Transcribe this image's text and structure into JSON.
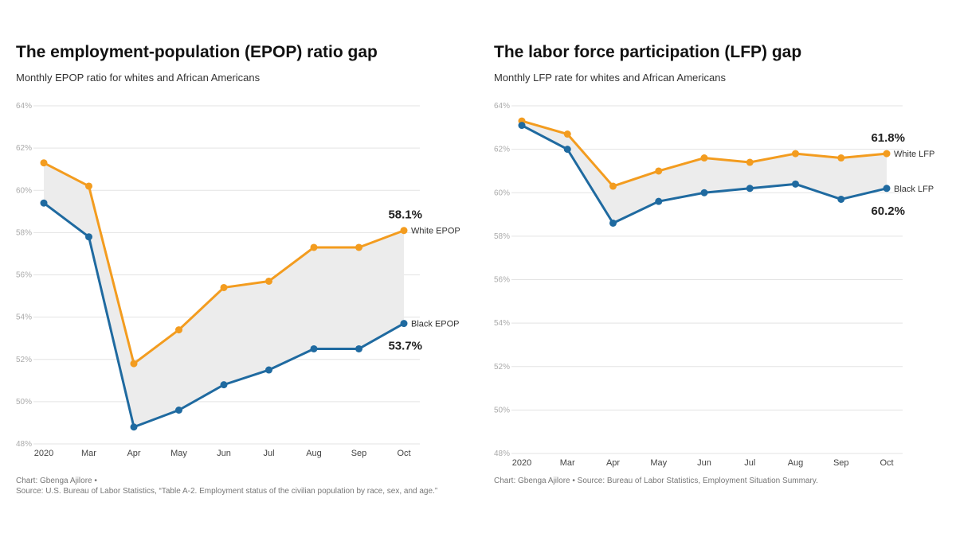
{
  "colors": {
    "white_series": "#f39c1f",
    "black_series": "#1f6aa0",
    "gap_fill": "#ececec",
    "grid": "#e3e3e3"
  },
  "chart_data": [
    {
      "type": "line",
      "title": "The employment-population (EPOP) ratio gap",
      "subtitle": "Monthly EPOP ratio for whites and African Americans",
      "footer_line1": "Chart: Gbenga Ajilore •",
      "footer_line2": "Source: U.S. Bureau of Labor Statistics, “Table A-2. Employment status of the civilian population by race, sex, and age.”",
      "categories": [
        "2020",
        "Mar",
        "Apr",
        "May",
        "Jun",
        "Jul",
        "Aug",
        "Sep",
        "Oct"
      ],
      "yticks": [
        "48%",
        "50%",
        "52%",
        "54%",
        "56%",
        "58%",
        "60%",
        "62%",
        "64%"
      ],
      "ylim": [
        48,
        64
      ],
      "grid": true,
      "gap_shaded": true,
      "series": [
        {
          "name": "White EPOP",
          "values": [
            61.3,
            60.2,
            51.8,
            53.4,
            55.4,
            55.7,
            57.3,
            57.3,
            58.1
          ],
          "end_label": "58.1%"
        },
        {
          "name": "Black EPOP",
          "values": [
            59.4,
            57.8,
            48.8,
            49.6,
            50.8,
            51.5,
            52.5,
            52.5,
            53.7
          ],
          "end_label": "53.7%"
        }
      ]
    },
    {
      "type": "line",
      "title": "The labor force participation (LFP) gap",
      "subtitle": "Monthly LFP rate for whites and African Americans",
      "footer_line1": "Chart: Gbenga Ajilore • Source: Bureau of Labor Statistics, Employment Situation Summary.",
      "footer_line2": "",
      "categories": [
        "2020",
        "Mar",
        "Apr",
        "May",
        "Jun",
        "Jul",
        "Aug",
        "Sep",
        "Oct"
      ],
      "yticks": [
        "48%",
        "50%",
        "52%",
        "54%",
        "56%",
        "58%",
        "60%",
        "62%",
        "64%"
      ],
      "ylim": [
        48,
        64
      ],
      "grid": true,
      "gap_shaded": true,
      "series": [
        {
          "name": "White LFP",
          "values": [
            63.3,
            62.7,
            60.3,
            61.0,
            61.6,
            61.4,
            61.8,
            61.6,
            61.8
          ],
          "end_label": "61.8%"
        },
        {
          "name": "Black LFP",
          "values": [
            63.1,
            62.0,
            58.6,
            59.6,
            60.0,
            60.2,
            60.4,
            59.7,
            60.2
          ],
          "end_label": "60.2%"
        }
      ]
    }
  ]
}
